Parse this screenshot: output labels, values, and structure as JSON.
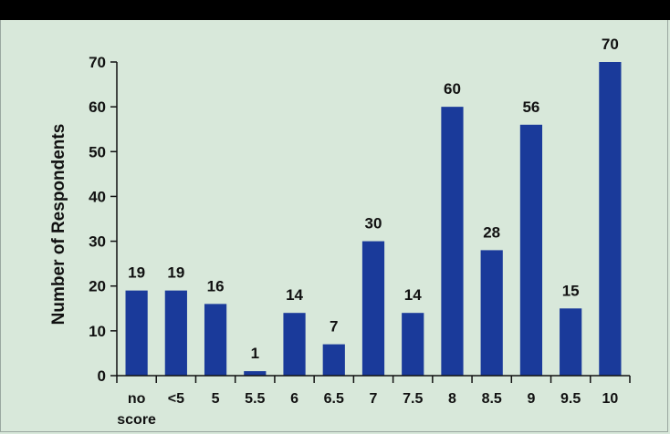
{
  "chart_data": {
    "type": "bar",
    "title": "",
    "xlabel": "",
    "ylabel": "Number of Respondents",
    "categories": [
      [
        "no",
        "score"
      ],
      [
        "<5"
      ],
      [
        "5"
      ],
      [
        "5.5"
      ],
      [
        "6"
      ],
      [
        "6.5"
      ],
      [
        "7"
      ],
      [
        "7.5"
      ],
      [
        "8"
      ],
      [
        "8.5"
      ],
      [
        "9"
      ],
      [
        "9.5"
      ],
      [
        "10"
      ]
    ],
    "values": [
      19,
      19,
      16,
      1,
      14,
      7,
      30,
      14,
      60,
      28,
      56,
      15,
      70
    ],
    "ylim": [
      0,
      70
    ],
    "yticks": [
      0,
      10,
      20,
      30,
      40,
      50,
      60,
      70
    ],
    "grid": false,
    "legend": "none",
    "bar_color": "#1a3a9a",
    "background_color": "#d8e8da",
    "header_color": "#000000"
  }
}
